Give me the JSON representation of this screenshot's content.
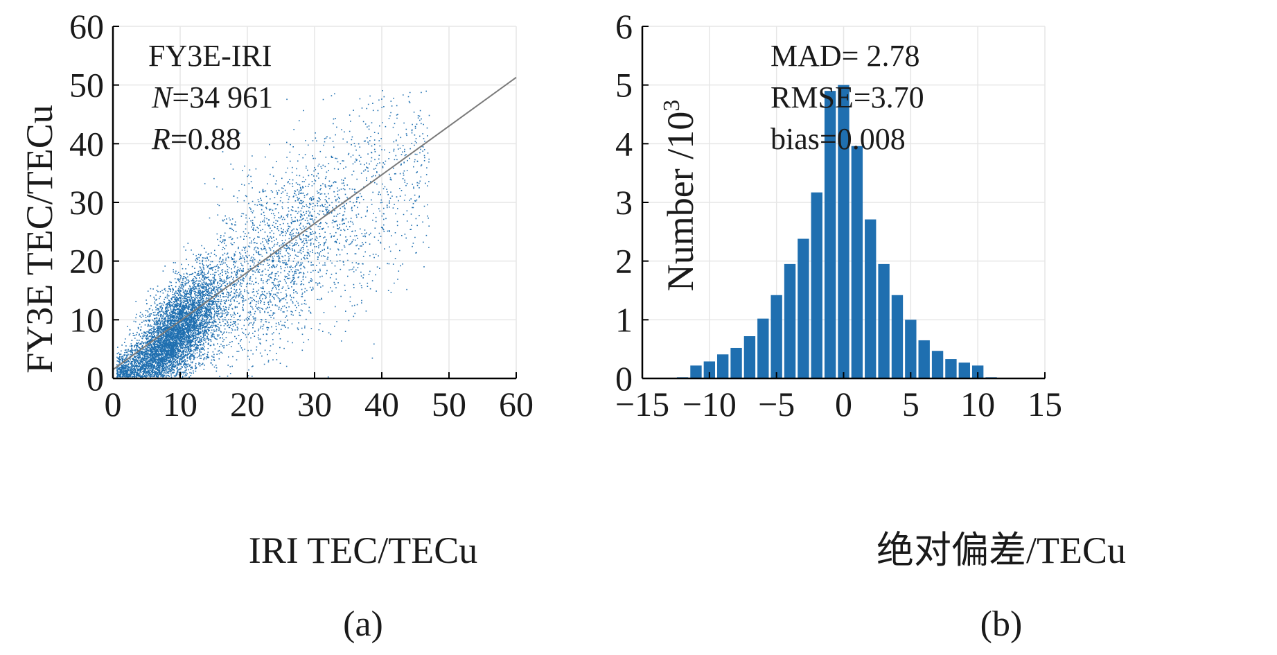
{
  "chart_data": [
    {
      "type": "scatter",
      "panel_label": "(a)",
      "annotation": {
        "name": "FY3E-IRI",
        "n_symbol": "N",
        "n_value": "=34 961",
        "r_symbol": "R",
        "r_value": "=0.88"
      },
      "xlabel": "IRI TEC/TECu",
      "ylabel": "FY3E TEC/TECu",
      "xlim": [
        0,
        60
      ],
      "ylim": [
        0,
        60
      ],
      "xticks": [
        "0",
        "10",
        "20",
        "30",
        "40",
        "50",
        "60"
      ],
      "yticks": [
        "0",
        "10",
        "20",
        "30",
        "40",
        "50",
        "60"
      ],
      "grid": true,
      "point_color": "#1f6fb0",
      "fit_line": {
        "slope": 0.83,
        "intercept": 1.5,
        "color": "#7a7a7a"
      },
      "point_count": 34961
    },
    {
      "type": "bar",
      "panel_label": "(b)",
      "annotation": {
        "mad": "MAD= 2.78",
        "rmse": "RMSE=3.70",
        "bias": "bias=0.008"
      },
      "xlabel": "绝对偏差/TECu",
      "ylabel_base": "Number /10",
      "ylabel_exp": "3",
      "xlim": [
        -15,
        15
      ],
      "ylim": [
        0,
        6
      ],
      "xticks": [
        "−15",
        "−10",
        "−5",
        "0",
        "5",
        "10",
        "15"
      ],
      "yticks": [
        "0",
        "1",
        "2",
        "3",
        "4",
        "5",
        "6"
      ],
      "grid": true,
      "bar_color": "#1f6fb0",
      "bin_width": 1,
      "bin_centers": [
        -12,
        -11,
        -10,
        -9,
        -8,
        -7,
        -6,
        -5,
        -4,
        -3,
        -2,
        -1,
        0,
        1,
        2,
        3,
        4,
        5,
        6,
        7,
        8,
        9,
        10,
        11
      ],
      "values": [
        0.02,
        0.22,
        0.29,
        0.41,
        0.52,
        0.72,
        1.02,
        1.42,
        1.95,
        2.38,
        3.17,
        4.9,
        5.0,
        3.96,
        2.71,
        1.95,
        1.42,
        1.0,
        0.65,
        0.47,
        0.33,
        0.27,
        0.22,
        0.02
      ]
    }
  ]
}
